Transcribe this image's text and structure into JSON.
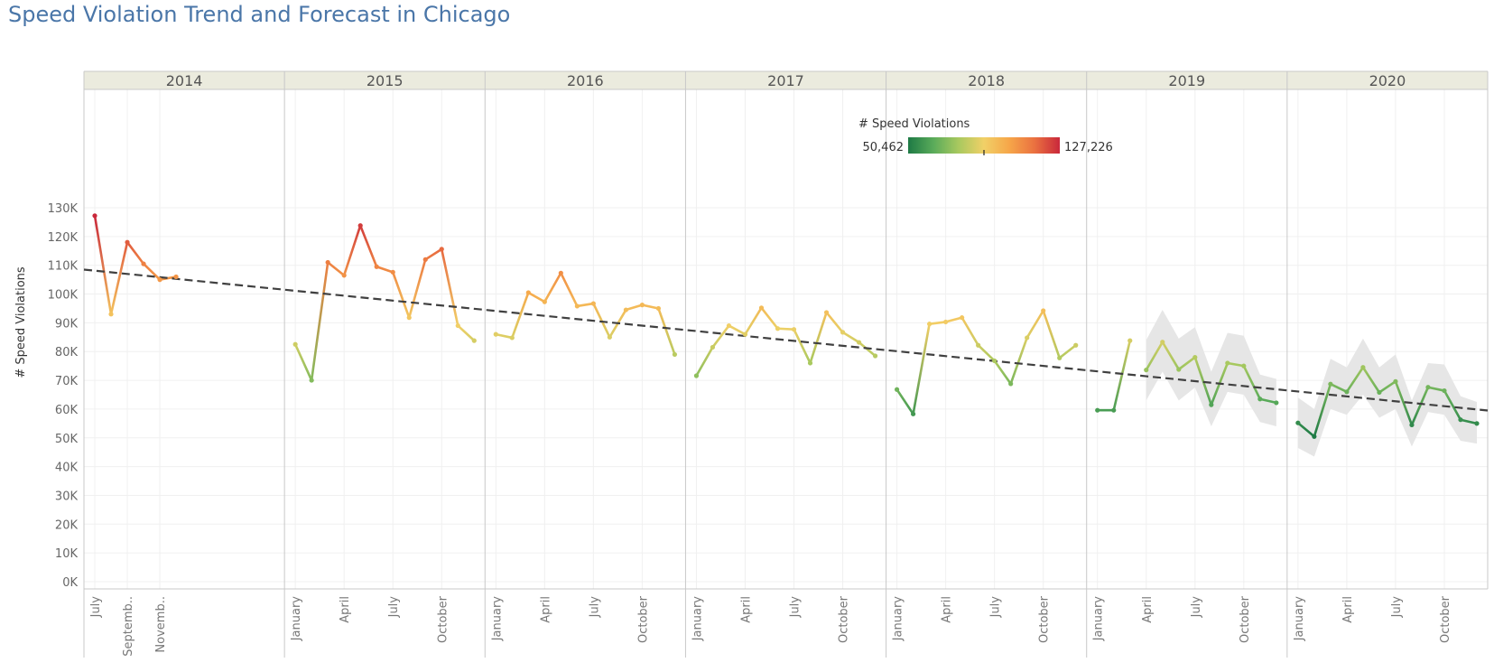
{
  "title": "Speed Violation Trend and Forecast in Chicago",
  "chart_data": {
    "type": "line",
    "ylabel": "# Speed Violations",
    "ylim": [
      0,
      130000
    ],
    "yticks": [
      "0K",
      "10K",
      "20K",
      "30K",
      "40K",
      "50K",
      "60K",
      "70K",
      "80K",
      "90K",
      "100K",
      "110K",
      "120K",
      "130K"
    ],
    "grid": true,
    "years": [
      {
        "label": "2014",
        "months": 6,
        "start_month": 7,
        "ticks": [
          {
            "m": 7,
            "label": "July"
          },
          {
            "m": 9,
            "label": "Septemb.."
          },
          {
            "m": 11,
            "label": "Novemb.."
          }
        ]
      },
      {
        "label": "2015",
        "months": 12,
        "start_month": 1,
        "ticks": [
          {
            "m": 1,
            "label": "January"
          },
          {
            "m": 4,
            "label": "April"
          },
          {
            "m": 7,
            "label": "July"
          },
          {
            "m": 10,
            "label": "October"
          }
        ]
      },
      {
        "label": "2016",
        "months": 12,
        "start_month": 1,
        "ticks": [
          {
            "m": 1,
            "label": "January"
          },
          {
            "m": 4,
            "label": "April"
          },
          {
            "m": 7,
            "label": "July"
          },
          {
            "m": 10,
            "label": "October"
          }
        ]
      },
      {
        "label": "2017",
        "months": 12,
        "start_month": 1,
        "ticks": [
          {
            "m": 1,
            "label": "January"
          },
          {
            "m": 4,
            "label": "April"
          },
          {
            "m": 7,
            "label": "July"
          },
          {
            "m": 10,
            "label": "October"
          }
        ]
      },
      {
        "label": "2018",
        "months": 12,
        "start_month": 1,
        "ticks": [
          {
            "m": 1,
            "label": "January"
          },
          {
            "m": 4,
            "label": "April"
          },
          {
            "m": 7,
            "label": "July"
          },
          {
            "m": 10,
            "label": "October"
          }
        ]
      },
      {
        "label": "2019",
        "months": 12,
        "start_month": 1,
        "ticks": [
          {
            "m": 1,
            "label": "January"
          },
          {
            "m": 4,
            "label": "April"
          },
          {
            "m": 7,
            "label": "July"
          },
          {
            "m": 10,
            "label": "October"
          }
        ]
      },
      {
        "label": "2020",
        "months": 12,
        "start_month": 1,
        "ticks": [
          {
            "m": 1,
            "label": "January"
          },
          {
            "m": 4,
            "label": "April"
          },
          {
            "m": 7,
            "label": "July"
          },
          {
            "m": 10,
            "label": "October"
          }
        ]
      }
    ],
    "actual": [
      {
        "year": "2014",
        "month": 7,
        "value": 127226
      },
      {
        "year": "2014",
        "month": 8,
        "value": 93000
      },
      {
        "year": "2014",
        "month": 9,
        "value": 118000
      },
      {
        "year": "2014",
        "month": 10,
        "value": 110500
      },
      {
        "year": "2014",
        "month": 11,
        "value": 105000
      },
      {
        "year": "2014",
        "month": 12,
        "value": 106000
      },
      {
        "year": "2015",
        "month": 1,
        "value": 82500
      },
      {
        "year": "2015",
        "month": 2,
        "value": 70000
      },
      {
        "year": "2015",
        "month": 3,
        "value": 111000
      },
      {
        "year": "2015",
        "month": 4,
        "value": 106500
      },
      {
        "year": "2015",
        "month": 5,
        "value": 123800
      },
      {
        "year": "2015",
        "month": 6,
        "value": 109500
      },
      {
        "year": "2015",
        "month": 7,
        "value": 107600
      },
      {
        "year": "2015",
        "month": 8,
        "value": 91800
      },
      {
        "year": "2015",
        "month": 9,
        "value": 112000
      },
      {
        "year": "2015",
        "month": 10,
        "value": 115600
      },
      {
        "year": "2015",
        "month": 11,
        "value": 89000
      },
      {
        "year": "2015",
        "month": 12,
        "value": 83800
      },
      {
        "year": "2016",
        "month": 1,
        "value": 86000
      },
      {
        "year": "2016",
        "month": 2,
        "value": 84800
      },
      {
        "year": "2016",
        "month": 3,
        "value": 100500
      },
      {
        "year": "2016",
        "month": 4,
        "value": 97300
      },
      {
        "year": "2016",
        "month": 5,
        "value": 107300
      },
      {
        "year": "2016",
        "month": 6,
        "value": 95800
      },
      {
        "year": "2016",
        "month": 7,
        "value": 96700
      },
      {
        "year": "2016",
        "month": 8,
        "value": 85000
      },
      {
        "year": "2016",
        "month": 9,
        "value": 94500
      },
      {
        "year": "2016",
        "month": 10,
        "value": 96200
      },
      {
        "year": "2016",
        "month": 11,
        "value": 95000
      },
      {
        "year": "2016",
        "month": 12,
        "value": 79000
      },
      {
        "year": "2017",
        "month": 1,
        "value": 71600
      },
      {
        "year": "2017",
        "month": 2,
        "value": 81500
      },
      {
        "year": "2017",
        "month": 3,
        "value": 89000
      },
      {
        "year": "2017",
        "month": 4,
        "value": 86000
      },
      {
        "year": "2017",
        "month": 5,
        "value": 95200
      },
      {
        "year": "2017",
        "month": 6,
        "value": 88000
      },
      {
        "year": "2017",
        "month": 7,
        "value": 87700
      },
      {
        "year": "2017",
        "month": 8,
        "value": 76000
      },
      {
        "year": "2017",
        "month": 9,
        "value": 93600
      },
      {
        "year": "2017",
        "month": 10,
        "value": 86700
      },
      {
        "year": "2017",
        "month": 11,
        "value": 83200
      },
      {
        "year": "2017",
        "month": 12,
        "value": 78500
      },
      {
        "year": "2018",
        "month": 1,
        "value": 66800
      },
      {
        "year": "2018",
        "month": 2,
        "value": 58300
      },
      {
        "year": "2018",
        "month": 3,
        "value": 89600
      },
      {
        "year": "2018",
        "month": 4,
        "value": 90300
      },
      {
        "year": "2018",
        "month": 5,
        "value": 91800
      },
      {
        "year": "2018",
        "month": 6,
        "value": 82200
      },
      {
        "year": "2018",
        "month": 7,
        "value": 76800
      },
      {
        "year": "2018",
        "month": 8,
        "value": 68800
      },
      {
        "year": "2018",
        "month": 9,
        "value": 84800
      },
      {
        "year": "2018",
        "month": 10,
        "value": 94200
      },
      {
        "year": "2018",
        "month": 11,
        "value": 77800
      },
      {
        "year": "2018",
        "month": 12,
        "value": 82200
      },
      {
        "year": "2019",
        "month": 1,
        "value": 59600
      },
      {
        "year": "2019",
        "month": 2,
        "value": 59600
      },
      {
        "year": "2019",
        "month": 3,
        "value": 83800
      }
    ],
    "forecast": [
      {
        "year": "2019",
        "month": 4,
        "value": 73600,
        "low": 63000,
        "high": 84000
      },
      {
        "year": "2019",
        "month": 5,
        "value": 83300,
        "low": 73000,
        "high": 94500
      },
      {
        "year": "2019",
        "month": 6,
        "value": 73800,
        "low": 63000,
        "high": 84500
      },
      {
        "year": "2019",
        "month": 7,
        "value": 78000,
        "low": 67500,
        "high": 88500
      },
      {
        "year": "2019",
        "month": 8,
        "value": 61500,
        "low": 54000,
        "high": 73000
      },
      {
        "year": "2019",
        "month": 9,
        "value": 76000,
        "low": 66000,
        "high": 86500
      },
      {
        "year": "2019",
        "month": 10,
        "value": 75000,
        "low": 65000,
        "high": 85500
      },
      {
        "year": "2019",
        "month": 11,
        "value": 63500,
        "low": 55500,
        "high": 72000
      },
      {
        "year": "2019",
        "month": 12,
        "value": 62200,
        "low": 54000,
        "high": 70500
      },
      {
        "year": "2020",
        "month": 1,
        "value": 55200,
        "low": 46500,
        "high": 64000
      },
      {
        "year": "2020",
        "month": 2,
        "value": 50462,
        "low": 43500,
        "high": 60000
      },
      {
        "year": "2020",
        "month": 3,
        "value": 68700,
        "low": 60000,
        "high": 77500
      },
      {
        "year": "2020",
        "month": 4,
        "value": 66000,
        "low": 58000,
        "high": 74500
      },
      {
        "year": "2020",
        "month": 5,
        "value": 74500,
        "low": 65000,
        "high": 84500
      },
      {
        "year": "2020",
        "month": 6,
        "value": 65800,
        "low": 57000,
        "high": 74500
      },
      {
        "year": "2020",
        "month": 7,
        "value": 69600,
        "low": 60000,
        "high": 79000
      },
      {
        "year": "2020",
        "month": 8,
        "value": 54500,
        "low": 47000,
        "high": 63000
      },
      {
        "year": "2020",
        "month": 9,
        "value": 67600,
        "low": 59000,
        "high": 76000
      },
      {
        "year": "2020",
        "month": 10,
        "value": 66400,
        "low": 58000,
        "high": 75500
      },
      {
        "year": "2020",
        "month": 11,
        "value": 56300,
        "low": 49000,
        "high": 64500
      },
      {
        "year": "2020",
        "month": 12,
        "value": 55000,
        "low": 48000,
        "high": 62500
      }
    ],
    "trend": {
      "start": {
        "year": "2014",
        "month": 7,
        "value": 108500
      },
      "end": {
        "year": "2020",
        "month": 12,
        "value": 59500
      }
    },
    "color_legend": {
      "title": "# Speed Violations",
      "min_label": "50,462",
      "max_label": "127,226",
      "min": 50462,
      "max": 127226,
      "gradient": [
        "#1e7a45",
        "#5aab5a",
        "#a9c95f",
        "#f1d067",
        "#f6a649",
        "#ea7140",
        "#c9283b"
      ],
      "placement": "top-center"
    },
    "colors": {
      "header_bg": "#ebebde",
      "band": "#e6e6e6",
      "trend": "#404040",
      "grid": "#f0f0f0",
      "divider": "#c8c8c8"
    }
  }
}
